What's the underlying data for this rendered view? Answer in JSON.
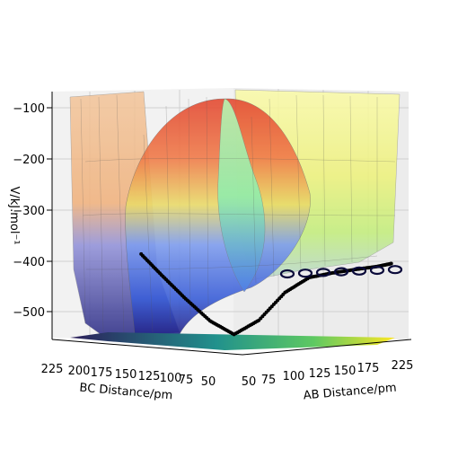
{
  "chart_data": {
    "type": "surface3d",
    "xlabel": "AB Distance/pm",
    "ylabel": "BC Distance/pm",
    "zlabel": "V/kJ.mol⁻¹",
    "xticks": [
      "50",
      "75",
      "100",
      "125",
      "150",
      "175",
      "200",
      "225"
    ],
    "yticks": [
      "50",
      "75",
      "100",
      "125",
      "150",
      "175",
      "200",
      "225"
    ],
    "zticks": [
      "−100",
      "−200",
      "−300",
      "−400",
      "−500"
    ],
    "xlim": [
      50,
      240
    ],
    "ylim": [
      50,
      240
    ],
    "zlim": [
      -560,
      -80
    ],
    "grid": true,
    "colors": {
      "surface_high": "#e34a33",
      "surface_mid": "#f4a460",
      "surface_yellow": "#f0f07a",
      "surface_green": "#9af59a",
      "surface_blue": "#4169e1",
      "surface_low": "#2a2a9a",
      "trajectory": "#000000",
      "floor_low": "#2c1e5a",
      "floor_mid": "#21918c",
      "floor_high": "#fde725"
    },
    "series": [
      {
        "type": "trajectory",
        "points": [
          {
            "ab": 60,
            "bc": 160,
            "v": -400
          },
          {
            "ab": 62,
            "bc": 140,
            "v": -440
          },
          {
            "ab": 65,
            "bc": 120,
            "v": -480
          },
          {
            "ab": 70,
            "bc": 100,
            "v": -520
          },
          {
            "ab": 80,
            "bc": 85,
            "v": -545
          },
          {
            "ab": 100,
            "bc": 78,
            "v": -520
          },
          {
            "ab": 125,
            "bc": 74,
            "v": -470
          },
          {
            "ab": 150,
            "bc": 72,
            "v": -445
          },
          {
            "ab": 175,
            "bc": 71,
            "v": -440
          },
          {
            "ab": 200,
            "bc": 70,
            "v": -437
          },
          {
            "ab": 225,
            "bc": 70,
            "v": -435
          },
          {
            "ab": 240,
            "bc": 70,
            "v": -432
          }
        ]
      }
    ]
  }
}
